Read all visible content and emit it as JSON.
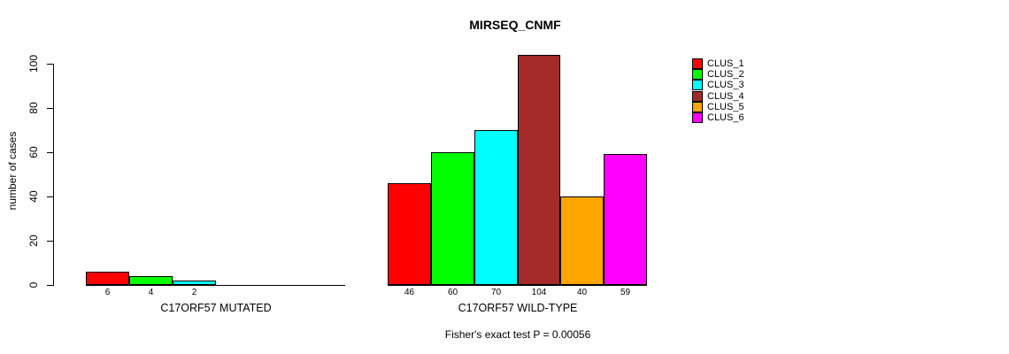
{
  "chart_data": {
    "type": "bar",
    "title": "MIRSEQ_CNMF",
    "ylabel": "number of cases",
    "xlabel": "",
    "ylim": [
      0,
      100
    ],
    "yticks": [
      0,
      20,
      40,
      60,
      80,
      100
    ],
    "grid": false,
    "legend_position": "right",
    "series_names": [
      "CLUS_1",
      "CLUS_2",
      "CLUS_3",
      "CLUS_4",
      "CLUS_5",
      "CLUS_6"
    ],
    "series_colors": [
      "#ff0000",
      "#00ff00",
      "#00ffff",
      "#a52a2a",
      "#ffa500",
      "#ff00ff"
    ],
    "groups": [
      {
        "label": "C17ORF57 MUTATED",
        "values": [
          6,
          4,
          2,
          0,
          0,
          0
        ]
      },
      {
        "label": "C17ORF57 WILD-TYPE",
        "values": [
          46,
          60,
          70,
          104,
          40,
          59
        ]
      }
    ],
    "bar_value_labels_shown": true,
    "annotation": "Fisher's exact test P = 0.00056"
  }
}
